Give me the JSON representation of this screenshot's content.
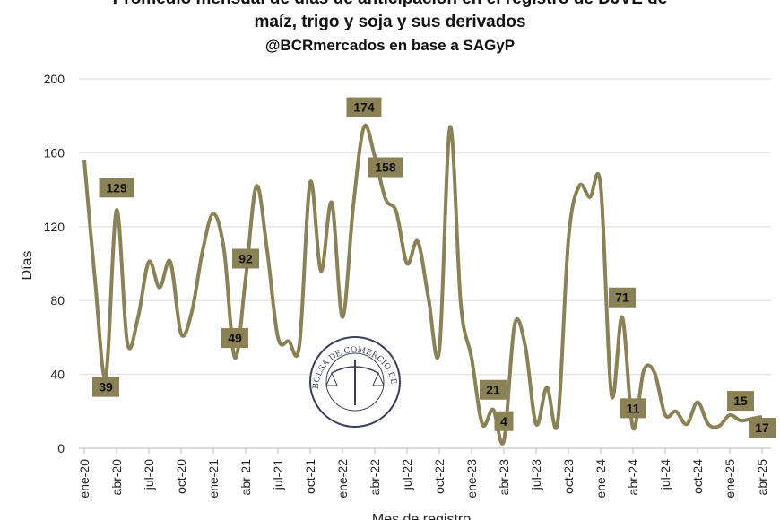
{
  "chart_data": {
    "type": "line",
    "title": [
      "Promedio mensual de días de anticipación en el registro de DJVE de",
      "maíz, trigo y soja y sus derivados"
    ],
    "subtitle": "@BCRmercados en base a SAGyP",
    "xlabel": "Mes de registro",
    "ylabel": "Días",
    "ylim": [
      0,
      200
    ],
    "yticks": [
      0,
      40,
      80,
      120,
      160,
      200
    ],
    "grid": true,
    "x_tick_labels": [
      "ene-20",
      "abr-20",
      "jul-20",
      "oct-20",
      "ene-21",
      "abr-21",
      "jul-21",
      "oct-21",
      "ene-22",
      "abr-22",
      "jul-22",
      "oct-22",
      "ene-23",
      "abr-23",
      "jul-23",
      "oct-23",
      "ene-24",
      "abr-24",
      "jul-24",
      "oct-24",
      "ene-25",
      "abr-25"
    ],
    "x_start": "ene-20",
    "x_end": "abr-25",
    "series": [
      {
        "name": "Días de anticipación",
        "color": "#8a8256",
        "values": [
          156,
          91,
          39,
          129,
          57,
          71,
          101,
          87,
          101,
          62,
          74,
          107,
          127,
          107,
          49,
          92,
          142,
          107,
          60,
          58,
          56,
          144,
          96,
          133,
          71,
          131,
          174,
          158,
          135,
          128,
          100,
          112,
          81,
          53,
          174,
          78,
          49,
          13,
          21,
          4,
          67,
          55,
          13,
          33,
          14,
          113,
          142,
          136,
          142,
          29,
          71,
          11,
          42,
          41,
          18,
          20,
          13,
          25,
          13,
          12,
          18,
          15,
          16,
          17
        ]
      }
    ],
    "data_labels": [
      {
        "index": 2,
        "text": "39",
        "pos": "below"
      },
      {
        "index": 3,
        "text": "129",
        "pos": "above"
      },
      {
        "index": 14,
        "text": "49",
        "pos": "above"
      },
      {
        "index": 15,
        "text": "92",
        "pos": "above"
      },
      {
        "index": 26,
        "text": "174",
        "pos": "above"
      },
      {
        "index": 27,
        "text": "158",
        "pos": "right"
      },
      {
        "index": 38,
        "text": "21",
        "pos": "above"
      },
      {
        "index": 39,
        "text": "4",
        "pos": "above"
      },
      {
        "index": 50,
        "text": "71",
        "pos": "above"
      },
      {
        "index": 51,
        "text": "11",
        "pos": "above"
      },
      {
        "index": 61,
        "text": "15",
        "pos": "above"
      },
      {
        "index": 63,
        "text": "17",
        "pos": "below"
      }
    ],
    "label_box_color": "#8a8256"
  },
  "watermark": "BOLSA DE COMERCIO DE ROSARIO"
}
